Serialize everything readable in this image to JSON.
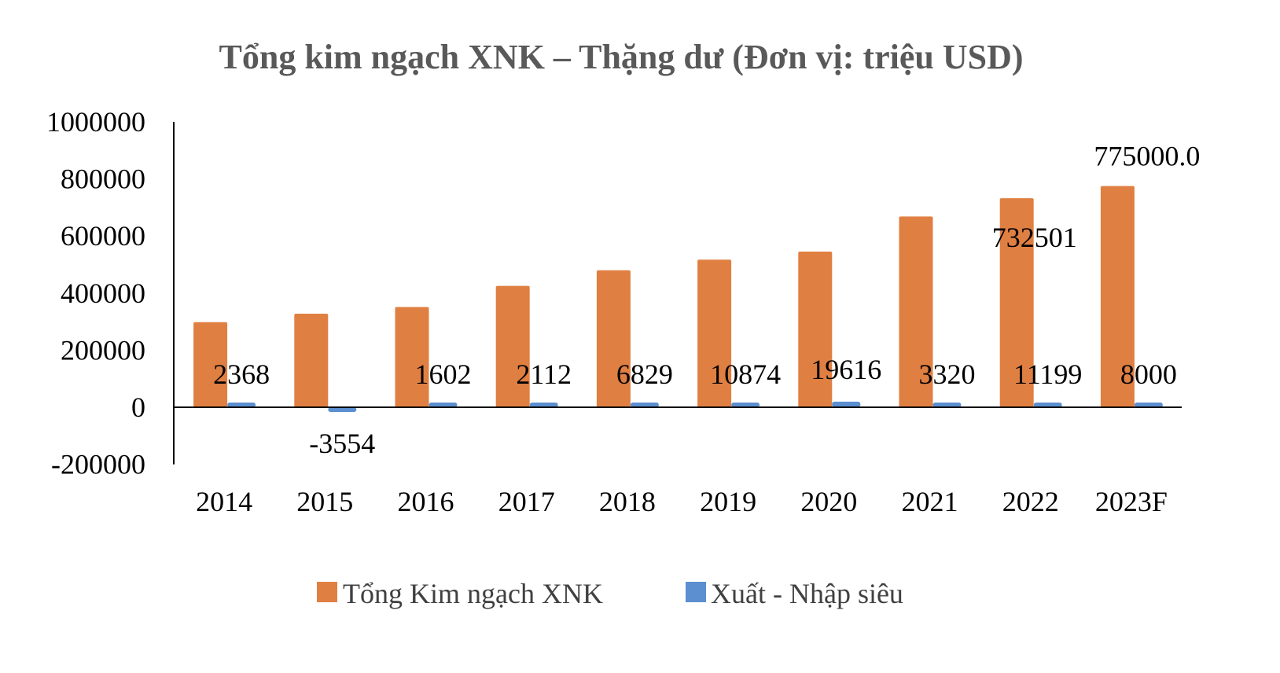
{
  "chart_data": {
    "type": "bar",
    "title": "Tổng kim ngạch XNK – Thặng dư (Đơn vị: triệu USD)",
    "xlabel": "",
    "ylabel": "",
    "ylim": [
      -200000,
      1000000
    ],
    "yticks": [
      -200000,
      0,
      200000,
      400000,
      600000,
      800000,
      1000000
    ],
    "ytick_labels": [
      "-200000",
      "0",
      "200000",
      "400000",
      "600000",
      "800000",
      "1000000"
    ],
    "grid": false,
    "legend_position": "bottom",
    "categories": [
      "2014",
      "2015",
      "2016",
      "2017",
      "2018",
      "2019",
      "2020",
      "2021",
      "2022",
      "2023F"
    ],
    "series": [
      {
        "name": "Tổng Kim ngạch XNK",
        "color": "#E07F42",
        "values": [
          298066,
          327760,
          351370,
          425120,
          480170,
          517260,
          545360,
          668540,
          732501,
          775000
        ],
        "data_labels": [
          null,
          null,
          null,
          null,
          null,
          null,
          null,
          null,
          "732501",
          "775000.0"
        ]
      },
      {
        "name": "Xuất - Nhập siêu",
        "color": "#5B8FD0",
        "values": [
          2368,
          -3554,
          1602,
          2112,
          6829,
          10874,
          19616,
          3320,
          11199,
          8000
        ],
        "data_labels": [
          "2368",
          "-3554",
          "1602",
          "2112",
          "6829",
          "10874",
          "19616",
          "3320",
          "11199",
          "8000"
        ]
      }
    ]
  }
}
